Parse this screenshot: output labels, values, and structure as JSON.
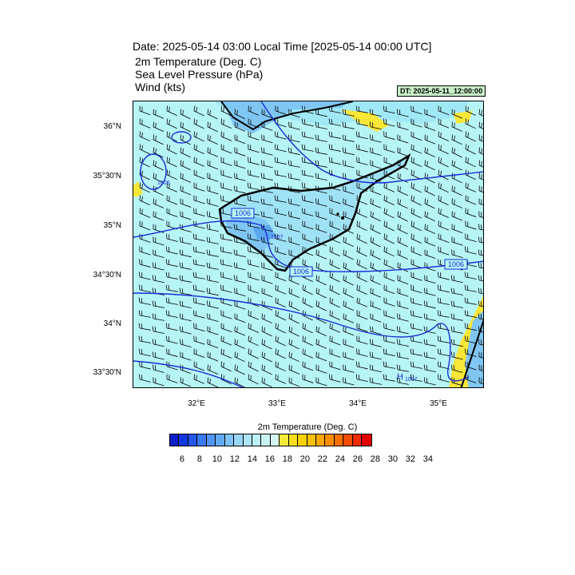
{
  "header": {
    "title": "Date: 2025-05-14  03:00 Local Time [2025-05-14  00:00 UTC]",
    "fields": [
      "2m Temperature (Deg. C)",
      "Sea Level Pressure   (hPa)",
      "Wind   (kts)"
    ],
    "dt_label": "DT: 2025-05-11_12:00:00"
  },
  "map": {
    "region": "Cyprus",
    "lat_labels": [
      "36°N",
      "35°30'N",
      "35°N",
      "34°30'N",
      "34°N",
      "33°30'N"
    ],
    "lon_labels": [
      "32°E",
      "33°E",
      "34°E",
      "35°E"
    ],
    "isobar_labels": [
      "1006",
      "1006",
      "1006",
      "1006",
      "1007"
    ],
    "pressure_center": {
      "marker": "H",
      "value": "1007"
    },
    "colors": {
      "sea_temp": "#b6f4f6",
      "cool_land": "#7fc6f2",
      "cold_core": "#5aa7f0",
      "warm": "#f8e638",
      "coast": "#000000",
      "isobar": "#1a2dd6",
      "wind_barb": "#000000"
    }
  },
  "colorbar": {
    "title": "2m Temperature (Deg. C)",
    "labels": [
      "6",
      "8",
      "10",
      "12",
      "14",
      "16",
      "18",
      "20",
      "22",
      "24",
      "26",
      "28",
      "30",
      "32",
      "34"
    ],
    "colors": [
      "#0d1fc8",
      "#1638e0",
      "#2458ec",
      "#3a7af0",
      "#4e95f2",
      "#63aaf4",
      "#7fc3f5",
      "#99d7f6",
      "#aee5f7",
      "#bdf0f7",
      "#c8f4f4",
      "#d5f7f2",
      "#f5ec3a",
      "#f8df1c",
      "#f8d200",
      "#f9c000",
      "#f9a700",
      "#f98c00",
      "#f77000",
      "#f44c00",
      "#ef2a00",
      "#e40000"
    ]
  }
}
